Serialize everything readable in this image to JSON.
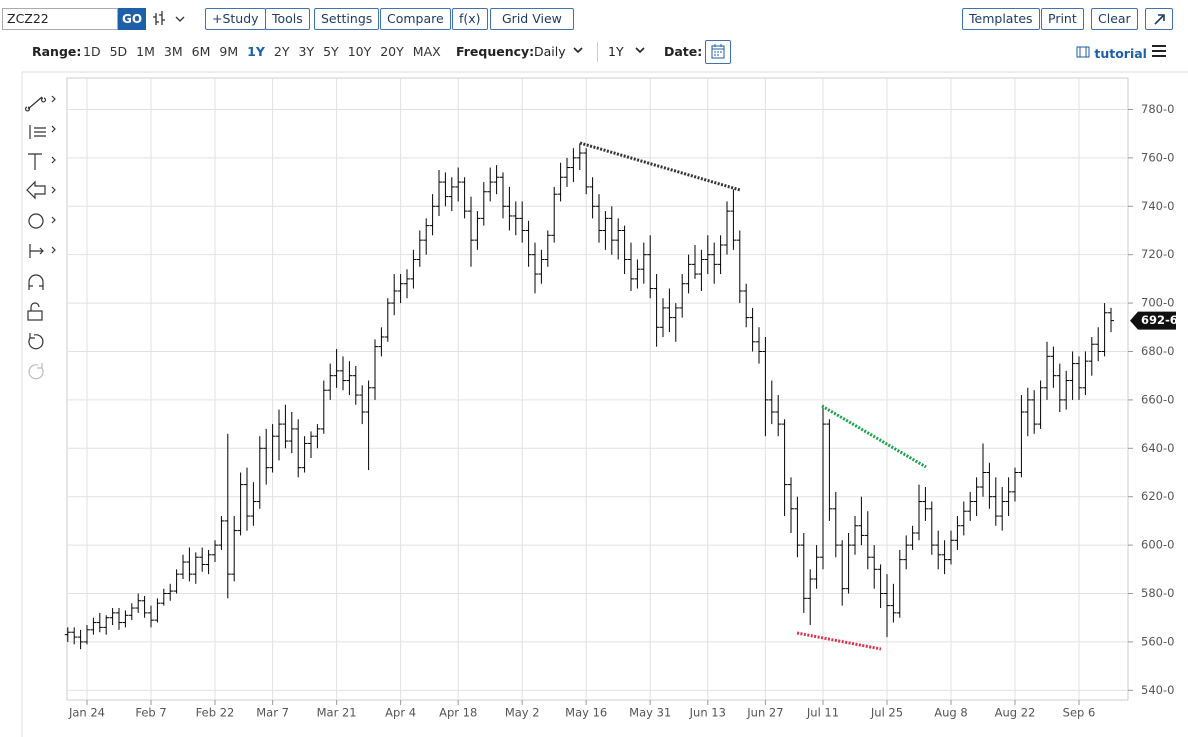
{
  "toolbar": {
    "symbol": "ZCZ22",
    "go": "GO",
    "buttons": [
      "+Study",
      "Tools",
      "Settings",
      "Compare",
      "f(x)",
      "Grid View"
    ],
    "right_buttons": [
      "Templates",
      "Print",
      "Clear"
    ]
  },
  "range_bar": {
    "label": "Range:",
    "ranges": [
      "1D",
      "5D",
      "1M",
      "3M",
      "6M",
      "9M",
      "1Y",
      "2Y",
      "3Y",
      "5Y",
      "10Y",
      "20Y",
      "MAX"
    ],
    "selected_range": "1Y",
    "frequency_label": "Frequency:",
    "frequency": "Daily",
    "period": "1Y",
    "date_label": "Date:",
    "tutorial": "tutorial"
  },
  "chart_data": {
    "type": "ohlc",
    "color": "#000000",
    "categories": [
      null,
      null,
      null,
      "Jan 24",
      null,
      null,
      null,
      null,
      null,
      null,
      null,
      null,
      null,
      "Feb 7",
      null,
      null,
      null,
      null,
      null,
      null,
      null,
      null,
      null,
      "Feb 22",
      null,
      null,
      null,
      null,
      null,
      null,
      null,
      null,
      "Mar 7",
      null,
      null,
      null,
      null,
      null,
      null,
      null,
      null,
      null,
      "Mar 21",
      null,
      null,
      null,
      null,
      null,
      null,
      null,
      null,
      null,
      "Apr 4",
      null,
      null,
      null,
      null,
      null,
      null,
      null,
      null,
      "Apr 18",
      null,
      null,
      null,
      null,
      null,
      null,
      null,
      null,
      null,
      "May 2",
      null,
      null,
      null,
      null,
      null,
      null,
      null,
      null,
      null,
      "May 16",
      null,
      null,
      null,
      null,
      null,
      null,
      null,
      null,
      null,
      "May 31",
      null,
      null,
      null,
      null,
      null,
      null,
      null,
      null,
      "Jun 13",
      null,
      null,
      null,
      null,
      null,
      null,
      null,
      null,
      "Jun 27",
      null,
      null,
      null,
      null,
      null,
      null,
      null,
      null,
      "Jul 11",
      null,
      null,
      null,
      null,
      null,
      null,
      null,
      null,
      null,
      "Jul 25",
      null,
      null,
      null,
      null,
      null,
      null,
      null,
      null,
      null,
      "Aug 8",
      null,
      null,
      null,
      null,
      null,
      null,
      null,
      null,
      null,
      "Aug 22",
      null,
      null,
      null,
      null,
      null,
      null,
      null,
      null,
      null,
      "Sep 6",
      null,
      null,
      null,
      null,
      null
    ],
    "bars": [
      [
        563,
        566,
        560,
        564
      ],
      [
        564,
        566,
        559,
        562
      ],
      [
        562,
        565,
        557,
        560
      ],
      [
        560,
        567,
        559,
        565
      ],
      [
        565,
        570,
        563,
        568
      ],
      [
        568,
        572,
        564,
        566
      ],
      [
        566,
        571,
        563,
        570
      ],
      [
        570,
        574,
        567,
        572
      ],
      [
        572,
        574,
        565,
        568
      ],
      [
        568,
        573,
        566,
        571
      ],
      [
        571,
        576,
        569,
        574
      ],
      [
        574,
        580,
        572,
        577
      ],
      [
        577,
        579,
        570,
        572
      ],
      [
        572,
        575,
        566,
        569
      ],
      [
        569,
        578,
        568,
        576
      ],
      [
        576,
        582,
        575,
        580
      ],
      [
        580,
        584,
        577,
        581
      ],
      [
        581,
        590,
        580,
        588
      ],
      [
        588,
        596,
        586,
        593
      ],
      [
        593,
        599,
        585,
        588
      ],
      [
        588,
        597,
        584,
        595
      ],
      [
        595,
        599,
        589,
        592
      ],
      [
        592,
        598,
        588,
        596
      ],
      [
        596,
        602,
        593,
        600
      ],
      [
        600,
        612,
        598,
        610
      ],
      [
        610,
        646,
        578,
        588
      ],
      [
        588,
        612,
        585,
        606
      ],
      [
        606,
        630,
        604,
        625
      ],
      [
        625,
        632,
        606,
        612
      ],
      [
        612,
        626,
        608,
        618
      ],
      [
        618,
        645,
        615,
        640
      ],
      [
        640,
        648,
        625,
        632
      ],
      [
        632,
        650,
        630,
        645
      ],
      [
        645,
        656,
        635,
        650
      ],
      [
        650,
        658,
        640,
        643
      ],
      [
        643,
        655,
        638,
        648
      ],
      [
        648,
        652,
        628,
        632
      ],
      [
        632,
        645,
        630,
        642
      ],
      [
        642,
        647,
        636,
        645
      ],
      [
        645,
        650,
        640,
        648
      ],
      [
        648,
        668,
        646,
        664
      ],
      [
        664,
        675,
        660,
        670
      ],
      [
        670,
        681,
        665,
        672
      ],
      [
        672,
        678,
        664,
        668
      ],
      [
        668,
        676,
        662,
        670
      ],
      [
        670,
        674,
        658,
        662
      ],
      [
        662,
        666,
        650,
        655
      ],
      [
        655,
        668,
        631,
        665
      ],
      [
        665,
        685,
        660,
        682
      ],
      [
        682,
        690,
        678,
        686
      ],
      [
        686,
        702,
        684,
        700
      ],
      [
        700,
        712,
        695,
        705
      ],
      [
        705,
        712,
        700,
        708
      ],
      [
        708,
        714,
        702,
        710
      ],
      [
        710,
        722,
        706,
        718
      ],
      [
        718,
        730,
        715,
        726
      ],
      [
        726,
        735,
        720,
        732
      ],
      [
        732,
        745,
        728,
        740
      ],
      [
        740,
        755,
        736,
        750
      ],
      [
        750,
        754,
        740,
        744
      ],
      [
        744,
        752,
        738,
        748
      ],
      [
        748,
        756,
        742,
        750
      ],
      [
        750,
        752,
        735,
        738
      ],
      [
        738,
        744,
        715,
        726
      ],
      [
        726,
        738,
        722,
        735
      ],
      [
        735,
        750,
        732,
        746
      ],
      [
        746,
        756,
        742,
        750
      ],
      [
        750,
        757,
        745,
        752
      ],
      [
        752,
        754,
        735,
        740
      ],
      [
        740,
        748,
        730,
        736
      ],
      [
        736,
        742,
        728,
        735
      ],
      [
        735,
        742,
        725,
        730
      ],
      [
        730,
        734,
        715,
        720
      ],
      [
        720,
        725,
        704,
        712
      ],
      [
        712,
        722,
        708,
        718
      ],
      [
        718,
        730,
        715,
        728
      ],
      [
        728,
        748,
        725,
        745
      ],
      [
        745,
        758,
        742,
        752
      ],
      [
        752,
        760,
        748,
        756
      ],
      [
        756,
        764,
        750,
        760
      ],
      [
        760,
        766,
        755,
        762
      ],
      [
        762,
        764,
        745,
        748
      ],
      [
        748,
        752,
        735,
        740
      ],
      [
        740,
        745,
        725,
        730
      ],
      [
        730,
        738,
        722,
        735
      ],
      [
        735,
        740,
        720,
        726
      ],
      [
        726,
        735,
        718,
        730
      ],
      [
        730,
        732,
        712,
        718
      ],
      [
        718,
        725,
        705,
        710
      ],
      [
        710,
        718,
        706,
        714
      ],
      [
        714,
        725,
        708,
        720
      ],
      [
        720,
        728,
        702,
        706
      ],
      [
        706,
        712,
        682,
        690
      ],
      [
        690,
        702,
        686,
        698
      ],
      [
        698,
        706,
        688,
        694
      ],
      [
        694,
        700,
        684,
        698
      ],
      [
        698,
        712,
        694,
        708
      ],
      [
        708,
        720,
        704,
        716
      ],
      [
        716,
        724,
        710,
        712
      ],
      [
        712,
        722,
        705,
        718
      ],
      [
        718,
        728,
        712,
        720
      ],
      [
        720,
        725,
        708,
        716
      ],
      [
        716,
        728,
        712,
        724
      ],
      [
        724,
        742,
        720,
        738
      ],
      [
        738,
        747,
        722,
        726
      ],
      [
        726,
        730,
        700,
        705
      ],
      [
        705,
        708,
        690,
        694
      ],
      [
        694,
        698,
        680,
        684
      ],
      [
        684,
        690,
        675,
        680
      ],
      [
        680,
        686,
        645,
        660
      ],
      [
        660,
        668,
        650,
        655
      ],
      [
        655,
        662,
        645,
        650
      ],
      [
        650,
        652,
        612,
        625
      ],
      [
        625,
        628,
        605,
        615
      ],
      [
        615,
        620,
        595,
        600
      ],
      [
        600,
        605,
        572,
        578
      ],
      [
        578,
        590,
        567,
        586
      ],
      [
        586,
        600,
        582,
        595
      ],
      [
        595,
        658,
        590,
        650
      ],
      [
        650,
        652,
        610,
        615
      ],
      [
        615,
        622,
        595,
        600
      ],
      [
        600,
        602,
        575,
        582
      ],
      [
        582,
        605,
        580,
        600
      ],
      [
        600,
        612,
        596,
        608
      ],
      [
        608,
        620,
        600,
        604
      ],
      [
        604,
        614,
        590,
        595
      ],
      [
        595,
        600,
        582,
        590
      ],
      [
        590,
        592,
        574,
        580
      ],
      [
        580,
        588,
        562,
        575
      ],
      [
        575,
        584,
        568,
        572
      ],
      [
        572,
        598,
        570,
        594
      ],
      [
        594,
        604,
        590,
        600
      ],
      [
        600,
        608,
        598,
        605
      ],
      [
        605,
        625,
        602,
        618
      ],
      [
        618,
        624,
        610,
        615
      ],
      [
        615,
        618,
        596,
        600
      ],
      [
        600,
        606,
        590,
        596
      ],
      [
        596,
        602,
        588,
        594
      ],
      [
        594,
        606,
        592,
        602
      ],
      [
        602,
        612,
        598,
        608
      ],
      [
        608,
        618,
        604,
        614
      ],
      [
        614,
        622,
        610,
        618
      ],
      [
        618,
        628,
        612,
        624
      ],
      [
        624,
        642,
        620,
        630
      ],
      [
        630,
        634,
        615,
        620
      ],
      [
        620,
        628,
        608,
        612
      ],
      [
        612,
        624,
        606,
        618
      ],
      [
        618,
        628,
        612,
        622
      ],
      [
        622,
        632,
        618,
        630
      ],
      [
        630,
        662,
        628,
        655
      ],
      [
        655,
        665,
        645,
        660
      ],
      [
        660,
        664,
        646,
        650
      ],
      [
        650,
        668,
        648,
        665
      ],
      [
        665,
        684,
        660,
        678
      ],
      [
        678,
        682,
        665,
        670
      ],
      [
        670,
        675,
        655,
        660
      ],
      [
        660,
        672,
        656,
        668
      ],
      [
        668,
        680,
        660,
        675
      ],
      [
        675,
        678,
        660,
        665
      ],
      [
        665,
        680,
        662,
        676
      ],
      [
        676,
        686,
        670,
        683
      ],
      [
        683,
        690,
        676,
        680
      ],
      [
        680,
        700,
        678,
        696
      ],
      [
        696,
        698,
        688,
        692.75
      ]
    ],
    "ylim": [
      536,
      793
    ],
    "yticks": [
      {
        "value": 540,
        "label": "540-0"
      },
      {
        "value": 560,
        "label": "560-0"
      },
      {
        "value": 580,
        "label": "580-0"
      },
      {
        "value": 600,
        "label": "600-0"
      },
      {
        "value": 620,
        "label": "620-0"
      },
      {
        "value": 640,
        "label": "640-0"
      },
      {
        "value": 660,
        "label": "660-0"
      },
      {
        "value": 680,
        "label": "680-0"
      },
      {
        "value": 700,
        "label": "700-0"
      },
      {
        "value": 720,
        "label": "720-0"
      },
      {
        "value": 740,
        "label": "740-0"
      },
      {
        "value": 760,
        "label": "760-0"
      },
      {
        "value": 780,
        "label": "780-0"
      }
    ],
    "last": {
      "value": 692.75,
      "label": "692-6"
    },
    "grid": true
  }
}
